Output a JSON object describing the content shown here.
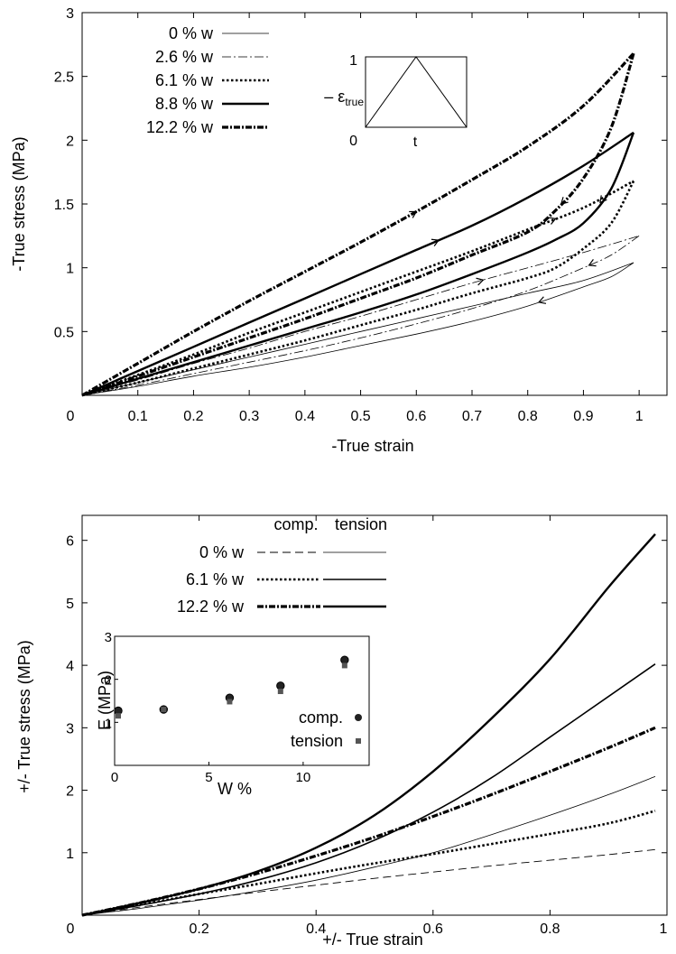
{
  "chart_data": [
    {
      "type": "line",
      "xlabel": "-True strain",
      "ylabel": "-True stress (MPa)",
      "xlim": [
        0,
        1.05
      ],
      "ylim": [
        0,
        3
      ],
      "x_ticks": [
        0,
        0.1,
        0.2,
        0.3,
        0.4,
        0.5,
        0.6,
        0.7,
        0.8,
        0.9,
        1
      ],
      "x_tick_labels": [
        "0",
        "0.1",
        "0.2",
        "0.3",
        "0.4",
        "0.5",
        "0.6",
        "0.7",
        "0.8",
        "0.9",
        "1"
      ],
      "y_ticks": [
        0.5,
        1,
        1.5,
        2,
        2.5,
        3
      ],
      "y_tick_labels": [
        "0.5",
        "1",
        "1.5",
        "2",
        "2.5",
        "3"
      ],
      "legend_position": "top-left",
      "series": [
        {
          "name": "0 % w",
          "style": "thin-solid",
          "loading": {
            "x": [
              0,
              0.1,
              0.2,
              0.3,
              0.4,
              0.5,
              0.6,
              0.7,
              0.8,
              0.9,
              0.99
            ],
            "y": [
              0,
              0.1,
              0.2,
              0.3,
              0.4,
              0.5,
              0.6,
              0.7,
              0.8,
              0.9,
              1.04
            ]
          },
          "unloading": {
            "x": [
              0.99,
              0.95,
              0.9,
              0.8,
              0.7,
              0.6,
              0.5,
              0.4,
              0.3,
              0.2,
              0.1,
              0
            ],
            "y": [
              1.04,
              0.93,
              0.85,
              0.7,
              0.58,
              0.48,
              0.39,
              0.3,
              0.22,
              0.15,
              0.07,
              0
            ]
          }
        },
        {
          "name": "2.6 % w",
          "style": "dash-dot-thin",
          "loading": {
            "x": [
              0,
              0.1,
              0.2,
              0.3,
              0.4,
              0.5,
              0.6,
              0.7,
              0.8,
              0.9,
              1.0
            ],
            "y": [
              0,
              0.12,
              0.25,
              0.37,
              0.5,
              0.62,
              0.75,
              0.88,
              1.0,
              1.12,
              1.25
            ]
          },
          "unloading": {
            "x": [
              1.0,
              0.95,
              0.9,
              0.8,
              0.7,
              0.6,
              0.5,
              0.4,
              0.3,
              0.2,
              0.1,
              0
            ],
            "y": [
              1.25,
              1.1,
              1.0,
              0.82,
              0.68,
              0.56,
              0.45,
              0.35,
              0.26,
              0.17,
              0.08,
              0
            ]
          }
        },
        {
          "name": "6.1 % w",
          "style": "dotted",
          "loading": {
            "x": [
              0,
              0.1,
              0.2,
              0.3,
              0.4,
              0.5,
              0.6,
              0.7,
              0.8,
              0.9,
              0.99
            ],
            "y": [
              0,
              0.16,
              0.32,
              0.49,
              0.65,
              0.81,
              0.97,
              1.13,
              1.3,
              1.47,
              1.68
            ]
          },
          "unloading": {
            "x": [
              0.99,
              0.95,
              0.9,
              0.85,
              0.8,
              0.7,
              0.6,
              0.5,
              0.4,
              0.3,
              0.2,
              0.1,
              0
            ],
            "y": [
              1.68,
              1.35,
              1.15,
              1.0,
              0.92,
              0.8,
              0.67,
              0.55,
              0.43,
              0.32,
              0.21,
              0.1,
              0
            ]
          }
        },
        {
          "name": "8.8 % w",
          "style": "thick-solid",
          "loading": {
            "x": [
              0,
              0.1,
              0.2,
              0.3,
              0.4,
              0.5,
              0.6,
              0.7,
              0.8,
              0.9,
              0.99
            ],
            "y": [
              0,
              0.19,
              0.38,
              0.57,
              0.76,
              0.95,
              1.14,
              1.33,
              1.55,
              1.8,
              2.06
            ]
          },
          "unloading": {
            "x": [
              0.99,
              0.95,
              0.9,
              0.85,
              0.8,
              0.7,
              0.6,
              0.5,
              0.4,
              0.3,
              0.2,
              0.1,
              0
            ],
            "y": [
              2.06,
              1.62,
              1.35,
              1.22,
              1.12,
              0.95,
              0.79,
              0.65,
              0.52,
              0.39,
              0.26,
              0.13,
              0
            ]
          }
        },
        {
          "name": "12.2 % w",
          "style": "thick-dash-dot",
          "loading": {
            "x": [
              0,
              0.1,
              0.2,
              0.3,
              0.4,
              0.5,
              0.6,
              0.7,
              0.8,
              0.9,
              0.99
            ],
            "y": [
              0,
              0.25,
              0.5,
              0.74,
              0.97,
              1.2,
              1.44,
              1.69,
              1.95,
              2.27,
              2.68
            ]
          },
          "unloading": {
            "x": [
              0.99,
              0.95,
              0.9,
              0.85,
              0.8,
              0.7,
              0.6,
              0.5,
              0.4,
              0.3,
              0.2,
              0.1,
              0
            ],
            "y": [
              2.68,
              2.1,
              1.7,
              1.45,
              1.28,
              1.1,
              0.92,
              0.76,
              0.6,
              0.45,
              0.3,
              0.15,
              0
            ]
          }
        }
      ],
      "inset": {
        "ylabel_prefix": "– ",
        "ylabel_symbol": "ε",
        "ylabel_subscript": "true",
        "xlabel": "t",
        "y_tick_labels": [
          "0",
          "1"
        ],
        "profile": {
          "t": [
            0,
            0.5,
            1
          ],
          "value": [
            0,
            1,
            0
          ]
        }
      }
    },
    {
      "type": "line",
      "xlabel": "+/- True strain",
      "ylabel": "+/- True stress (MPa)",
      "xlim": [
        0,
        1
      ],
      "ylim": [
        0,
        6.4
      ],
      "x_ticks": [
        0,
        0.2,
        0.4,
        0.6,
        0.8,
        1
      ],
      "x_tick_labels": [
        "0",
        "0.2",
        "0.4",
        "0.6",
        "0.8",
        "1"
      ],
      "y_ticks": [
        1,
        2,
        3,
        4,
        5,
        6
      ],
      "y_tick_labels": [
        "1",
        "2",
        "3",
        "4",
        "5",
        "6"
      ],
      "legend_position": "top-center",
      "legend_headers": [
        "comp.",
        "tension"
      ],
      "series": [
        {
          "name": "0 % w",
          "mode": "comp.",
          "style": "dashed",
          "x": [
            0,
            0.1,
            0.2,
            0.3,
            0.4,
            0.5,
            0.6,
            0.7,
            0.8,
            0.9,
            0.98
          ],
          "y": [
            0,
            0.13,
            0.25,
            0.37,
            0.48,
            0.59,
            0.69,
            0.79,
            0.88,
            0.97,
            1.05
          ]
        },
        {
          "name": "0 % w",
          "mode": "tension",
          "style": "thin-solid",
          "x": [
            0,
            0.1,
            0.2,
            0.3,
            0.4,
            0.5,
            0.6,
            0.7,
            0.8,
            0.9,
            0.98
          ],
          "y": [
            0,
            0.11,
            0.24,
            0.39,
            0.56,
            0.77,
            1.0,
            1.29,
            1.6,
            1.93,
            2.22
          ]
        },
        {
          "name": "6.1 % w",
          "mode": "comp.",
          "style": "dotted",
          "x": [
            0,
            0.1,
            0.2,
            0.3,
            0.4,
            0.5,
            0.6,
            0.7,
            0.8,
            0.9,
            0.98
          ],
          "y": [
            0,
            0.17,
            0.34,
            0.5,
            0.67,
            0.83,
            0.98,
            1.14,
            1.3,
            1.47,
            1.67
          ]
        },
        {
          "name": "6.1 % w",
          "mode": "tension",
          "style": "medium-solid",
          "x": [
            0,
            0.1,
            0.2,
            0.3,
            0.4,
            0.5,
            0.6,
            0.7,
            0.8,
            0.9,
            0.98
          ],
          "y": [
            0,
            0.16,
            0.34,
            0.56,
            0.84,
            1.2,
            1.65,
            2.2,
            2.85,
            3.5,
            4.02
          ]
        },
        {
          "name": "12.2 % w",
          "mode": "comp.",
          "style": "thick-dash-dot",
          "x": [
            0,
            0.1,
            0.2,
            0.3,
            0.4,
            0.5,
            0.6,
            0.7,
            0.8,
            0.9,
            0.98
          ],
          "y": [
            0,
            0.2,
            0.42,
            0.67,
            0.95,
            1.25,
            1.58,
            1.93,
            2.3,
            2.68,
            3.0
          ]
        },
        {
          "name": "12.2 % w",
          "mode": "tension",
          "style": "thick-solid",
          "x": [
            0,
            0.1,
            0.2,
            0.3,
            0.4,
            0.5,
            0.6,
            0.7,
            0.8,
            0.9,
            0.98
          ],
          "y": [
            0,
            0.2,
            0.42,
            0.7,
            1.08,
            1.6,
            2.3,
            3.15,
            4.1,
            5.25,
            6.1
          ]
        }
      ],
      "inset": {
        "type": "scatter",
        "xlabel": "W %",
        "ylabel": "E (MPa)",
        "xlim": [
          0,
          13.5
        ],
        "ylim": [
          0,
          3
        ],
        "x_ticks": [
          0,
          5,
          10
        ],
        "x_tick_labels": [
          "0",
          "5",
          "10"
        ],
        "y_ticks": [
          1,
          2,
          3
        ],
        "y_tick_labels": [
          "1",
          "2",
          "3"
        ],
        "series": [
          {
            "name": "comp.",
            "marker": "circle",
            "x": [
              0,
              2.6,
              6.1,
              8.8,
              12.2
            ],
            "y": [
              1.27,
              1.3,
              1.57,
              1.85,
              2.45
            ]
          },
          {
            "name": "tension",
            "marker": "square",
            "x": [
              0,
              2.6,
              6.1,
              8.8,
              12.2
            ],
            "y": [
              1.15,
              1.3,
              1.48,
              1.72,
              2.32
            ]
          }
        ]
      }
    }
  ]
}
